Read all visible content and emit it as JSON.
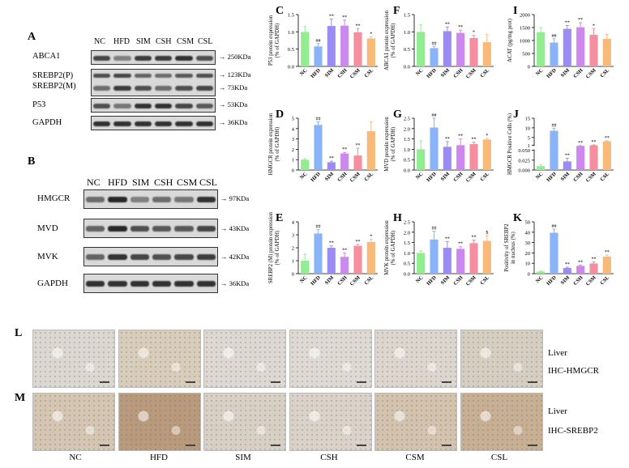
{
  "panel_labels": {
    "A": "A",
    "B": "B",
    "C": "C",
    "D": "D",
    "E": "E",
    "F": "F",
    "G": "G",
    "H": "H",
    "I": "I",
    "J": "J",
    "K": "K",
    "L": "L",
    "M": "M"
  },
  "blotA": {
    "lanes": [
      "NC",
      "HFD",
      "SIM",
      "CSH",
      "CSM",
      "CSL"
    ],
    "rows": [
      {
        "label": "ABCA1",
        "kda": "→ 250KDa"
      },
      {
        "label": "SREBP2(P)",
        "kda": "→ 123KDa"
      },
      {
        "label": "SREBP2(M)",
        "kda": "→ 73KDa"
      },
      {
        "label": "P53",
        "kda": "→ 53KDa"
      },
      {
        "label": "GAPDH",
        "kda": "→ 36KDa"
      }
    ]
  },
  "blotB": {
    "lanes": [
      "NC",
      "HFD",
      "SIM",
      "CSH",
      "CSM",
      "CSL"
    ],
    "rows": [
      {
        "label": "HMGCR",
        "kda": "→ 97KDa"
      },
      {
        "label": "MVD",
        "kda": "→ 43KDa"
      },
      {
        "label": "MVK",
        "kda": "→ 42KDa"
      },
      {
        "label": "GAPDH",
        "kda": "→ 36KDa"
      }
    ]
  },
  "colors": [
    "#90ee90",
    "#8ab4f8",
    "#9b8cf5",
    "#cc88ee",
    "#f58fa0",
    "#f9b978"
  ],
  "chart_data": [
    {
      "id": "C",
      "type": "bar",
      "categories": [
        "NC",
        "HFD",
        "SIM",
        "CSH",
        "CSM",
        "CSL"
      ],
      "values": [
        1.0,
        0.58,
        1.17,
        1.18,
        0.99,
        0.81
      ],
      "errors": [
        0.15,
        0.08,
        0.2,
        0.16,
        0.1,
        0.05
      ],
      "marks": [
        "",
        "##",
        "**",
        "**",
        "**",
        "*"
      ],
      "ylabel": "P53 protein expression\n(% of GAPDH)",
      "ylim": [
        0,
        1.5
      ],
      "ticks": [
        0,
        0.5,
        1.0,
        1.5
      ],
      "tick_labels": [
        "0.0",
        "0.5",
        "1.0",
        "1.5"
      ]
    },
    {
      "id": "F",
      "type": "bar",
      "categories": [
        "NC",
        "HFD",
        "SIM",
        "CSH",
        "CSM",
        "CSL"
      ],
      "values": [
        1.0,
        0.53,
        1.02,
        0.97,
        0.82,
        0.7
      ],
      "errors": [
        0.2,
        0.05,
        0.12,
        0.08,
        0.08,
        0.22
      ],
      "marks": [
        "",
        "##",
        "**",
        "**",
        "*",
        ""
      ],
      "ylabel": "ABCA1 protein expression\n(% of GAPDH)",
      "ylim": [
        0,
        1.5
      ],
      "ticks": [
        0,
        0.5,
        1.0,
        1.5
      ],
      "tick_labels": [
        "0.0",
        "0.5",
        "1.0",
        "1.5"
      ]
    },
    {
      "id": "I",
      "type": "bar",
      "categories": [
        "NC",
        "HFD",
        "SIM",
        "CSH",
        "CSM",
        "CSL"
      ],
      "values": [
        1320,
        920,
        1450,
        1510,
        1220,
        1060
      ],
      "errors": [
        180,
        150,
        130,
        180,
        240,
        170
      ],
      "marks": [
        "",
        "##",
        "**",
        "**",
        "*",
        ""
      ],
      "ylabel": "ACAT (pg/mg prot)",
      "ylim": [
        0,
        2000
      ],
      "ticks": [
        0,
        500,
        1000,
        1500,
        2000
      ],
      "tick_labels": [
        "0",
        "500",
        "1000",
        "1500",
        "2000"
      ]
    },
    {
      "id": "D",
      "type": "bar",
      "categories": [
        "NC",
        "HFD",
        "SIM",
        "CSH",
        "CSM",
        "CSL"
      ],
      "values": [
        1.0,
        4.35,
        0.75,
        1.6,
        1.4,
        3.75
      ],
      "errors": [
        0.1,
        0.3,
        0.1,
        0.1,
        0.7,
        0.9
      ],
      "marks": [
        "",
        "##",
        "**",
        "**",
        "**",
        ""
      ],
      "ylabel": "HMGCR protein expression\n(% of GAPDH)",
      "ylim": [
        0,
        5
      ],
      "ticks": [
        0,
        1,
        2,
        3,
        4,
        5
      ],
      "tick_labels": [
        "0",
        "1",
        "2",
        "3",
        "4",
        "5"
      ]
    },
    {
      "id": "G",
      "type": "bar",
      "categories": [
        "NC",
        "HFD",
        "SIM",
        "CSH",
        "CSM",
        "CSL"
      ],
      "values": [
        1.0,
        2.05,
        1.12,
        1.2,
        1.25,
        1.47
      ],
      "errors": [
        0.4,
        0.45,
        0.25,
        0.3,
        0.1,
        0.05
      ],
      "marks": [
        "",
        "##",
        "**",
        "**",
        "**",
        "*"
      ],
      "ylabel": "MVD protein expression\n(% of GAPDH)",
      "ylim": [
        0,
        2.5
      ],
      "ticks": [
        0,
        0.5,
        1.0,
        1.5,
        2.0,
        2.5
      ],
      "tick_labels": [
        "0.0",
        "0.5",
        "1.0",
        "1.5",
        "2.0",
        "2.5"
      ]
    },
    {
      "id": "J",
      "type": "bar",
      "categories": [
        "NC",
        "HFD",
        "SIM",
        "CSH",
        "CSM",
        "CSL"
      ],
      "values": [
        0.01,
        8.5,
        0.022,
        0.6,
        0.9,
        3.0
      ],
      "errors": [
        0.004,
        1.3,
        0.008,
        0.15,
        0.2,
        0.3
      ],
      "marks": [
        "",
        "##",
        "**",
        "**",
        "**",
        "**"
      ],
      "ylabel": "HMGCR Positive Cells (%)",
      "broken_axis": true,
      "ylim_lower": [
        0,
        0.05
      ],
      "ylim_upper": [
        0,
        15
      ],
      "ticks_lower": [
        0,
        0.025,
        0.05
      ],
      "tick_labels_lower": [
        "0.000",
        "0.025",
        "0.050"
      ],
      "ticks_upper": [
        1,
        5,
        10,
        15
      ],
      "tick_labels_upper": [
        "1",
        "5",
        "10",
        "15"
      ]
    },
    {
      "id": "E",
      "type": "bar",
      "categories": [
        "NC",
        "HFD",
        "SIM",
        "CSH",
        "CSM",
        "CSL"
      ],
      "values": [
        1.0,
        3.1,
        2.0,
        1.3,
        2.15,
        2.45
      ],
      "errors": [
        0.5,
        0.3,
        0.15,
        0.3,
        0.1,
        0.2
      ],
      "marks": [
        "",
        "##",
        "**",
        "**",
        "**",
        "*"
      ],
      "ylabel": "SREBP2 (M) protein expression\n(% of GAPDH)",
      "ylim": [
        0,
        4
      ],
      "ticks": [
        0,
        1,
        2,
        3,
        4
      ],
      "tick_labels": [
        "0",
        "1",
        "2",
        "3",
        "4"
      ]
    },
    {
      "id": "H",
      "type": "bar",
      "categories": [
        "NC",
        "HFD",
        "SIM",
        "CSH",
        "CSM",
        "CSL"
      ],
      "values": [
        1.0,
        1.65,
        1.25,
        1.2,
        1.47,
        1.58
      ],
      "errors": [
        0.1,
        0.4,
        0.3,
        0.1,
        0.15,
        0.25
      ],
      "marks": [
        "",
        "##",
        "**",
        "**",
        "**",
        "$"
      ],
      "ylabel": "MVK protein expression\n(% of GAPDH)",
      "ylim": [
        0,
        2.5
      ],
      "ticks": [
        0,
        0.5,
        1.0,
        1.5,
        2.0,
        2.5
      ],
      "tick_labels": [
        "0.0",
        "0.5",
        "1.0",
        "1.5",
        "2.0",
        "2.5"
      ]
    },
    {
      "id": "K",
      "type": "bar",
      "categories": [
        "NC",
        "HFD",
        "SIM",
        "CSH",
        "CSM",
        "CSL"
      ],
      "values": [
        2.0,
        39.5,
        5.5,
        7.5,
        9.8,
        16.5
      ],
      "errors": [
        0.5,
        3.5,
        0.8,
        0.8,
        1.5,
        1.5
      ],
      "marks": [
        "",
        "##",
        "**",
        "**",
        "**",
        "**"
      ],
      "ylabel": "Positivity of SREBP2\nin nucleus (%)",
      "ylim": [
        0,
        50
      ],
      "ticks": [
        0,
        10,
        20,
        30,
        40,
        50
      ],
      "tick_labels": [
        "0",
        "10",
        "20",
        "30",
        "40",
        "50"
      ]
    }
  ],
  "ihc": {
    "groups": [
      "NC",
      "HFD",
      "SIM",
      "CSH",
      "CSM",
      "CSL"
    ],
    "row_L": {
      "line1": "Liver",
      "line2": "IHC-HMGCR"
    },
    "row_M": {
      "line1": "Liver",
      "line2": "IHC-SREBP2"
    }
  }
}
